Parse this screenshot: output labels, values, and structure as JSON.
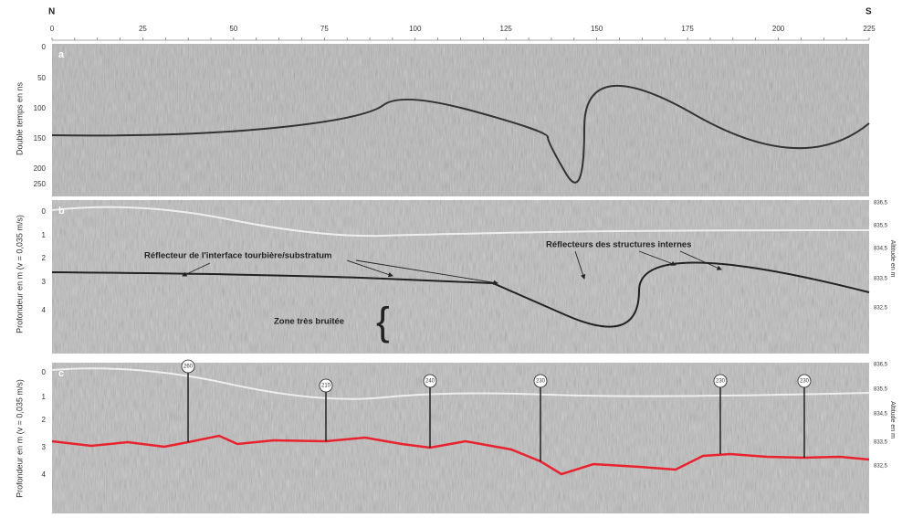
{
  "header": {
    "left": "N",
    "right": "S",
    "distance_ticks": [
      "0",
      "25",
      "50",
      "75",
      "100",
      "125",
      "150",
      "175",
      "200",
      "225"
    ]
  },
  "panels": [
    {
      "letter": "a",
      "y_title": "Double temps en ns",
      "y_ticks": [
        "0",
        "50",
        "100",
        "150",
        "200",
        "250"
      ]
    },
    {
      "letter": "b",
      "y_title": "Profondeur en m (v = 0,035 m/s)",
      "y_ticks": [
        "0",
        "1",
        "2",
        "3",
        "4"
      ],
      "right_title": "Altitude en m",
      "right_ticks": [
        "836,5",
        "835,5",
        "834,5",
        "833,5",
        "832,5"
      ],
      "annotations": [
        "Réflecteur de l'interface tourbière/substratum",
        "Réflecteurs des structures internes",
        "Zone très bruitée"
      ]
    },
    {
      "letter": "c",
      "y_title": "Profondeur en m (v = 0,035 m/s)",
      "y_ticks": [
        "0",
        "1",
        "2",
        "3",
        "4"
      ],
      "right_title": "Altitude en m",
      "right_ticks": [
        "836,5",
        "835,5",
        "834,5",
        "833,5",
        "832,5"
      ],
      "boreholes": [
        "260",
        "210",
        "240",
        "230",
        "230",
        "230"
      ]
    }
  ]
}
